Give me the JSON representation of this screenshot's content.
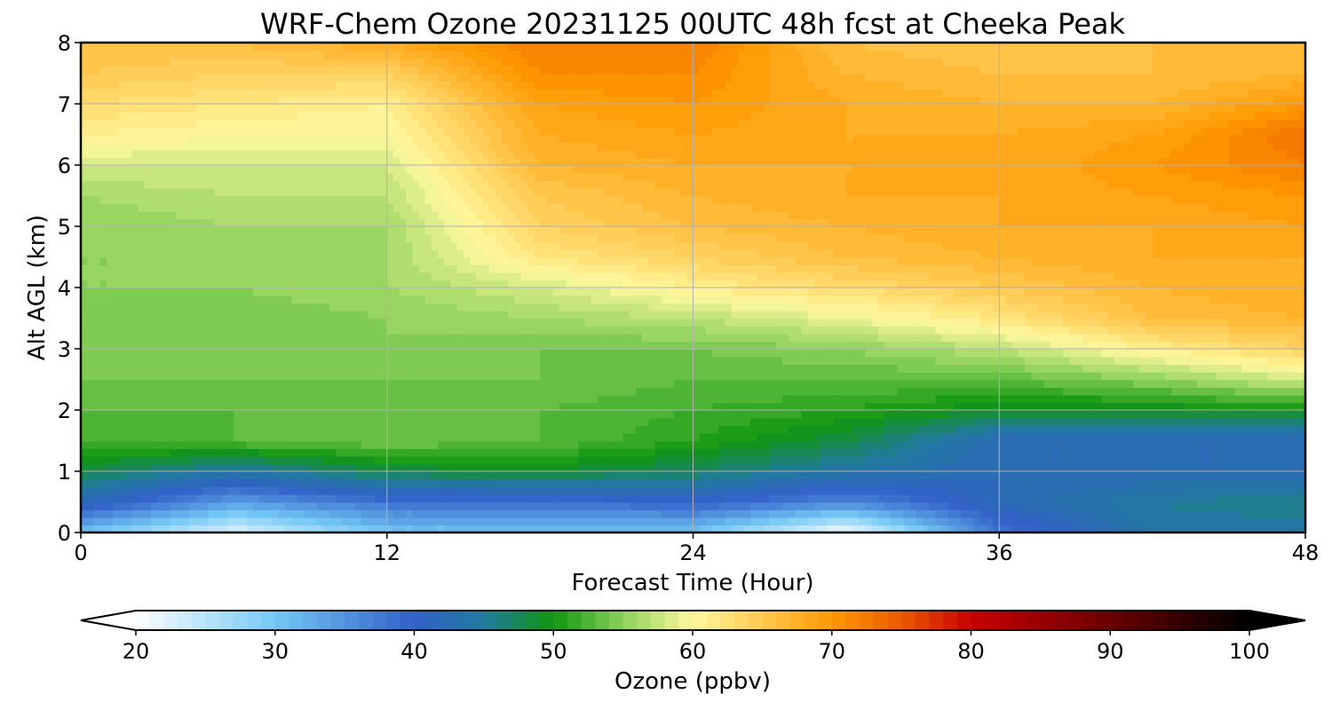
{
  "chart_data": {
    "type": "heatmap",
    "title": "WRF-Chem Ozone  20231125 00UTC 48h fcst at Cheeka Peak",
    "xlabel": "Forecast Time (Hour)",
    "ylabel": "Alt AGL (km)",
    "xlim": [
      0,
      48
    ],
    "ylim": [
      0,
      8
    ],
    "x_ticks": [
      "0",
      "12",
      "24",
      "36",
      "48"
    ],
    "y_ticks": [
      "0",
      "1",
      "2",
      "3",
      "4",
      "5",
      "6",
      "7",
      "8"
    ],
    "grid": true,
    "x": [
      0,
      6,
      12,
      18,
      24,
      30,
      36,
      42,
      48
    ],
    "y": [
      0,
      0.5,
      1,
      1.5,
      2,
      2.5,
      3,
      3.5,
      4,
      4.5,
      5,
      5.5,
      6,
      6.5,
      7,
      7.5,
      8
    ],
    "z": [
      [
        30,
        22,
        30,
        30,
        30,
        20,
        38,
        44,
        44
      ],
      [
        42,
        34,
        38,
        38,
        40,
        36,
        42,
        45,
        46
      ],
      [
        48,
        44,
        48,
        49,
        47,
        44,
        42,
        42,
        42
      ],
      [
        52,
        53,
        54,
        53,
        51,
        48,
        42,
        42,
        42
      ],
      [
        53,
        53,
        53,
        53,
        52,
        51,
        49,
        49,
        50
      ],
      [
        54,
        54,
        54,
        54,
        53,
        53,
        53,
        55,
        58
      ],
      [
        55,
        54,
        55,
        54,
        54,
        55,
        57,
        61,
        64
      ],
      [
        55,
        54,
        55,
        56,
        57,
        59,
        62,
        66,
        67
      ],
      [
        55,
        55,
        56,
        58,
        61,
        63,
        65,
        67,
        68
      ],
      [
        55,
        55,
        56,
        62,
        64,
        66,
        67,
        68,
        68
      ],
      [
        55,
        56,
        56,
        64,
        66,
        67,
        68,
        68,
        69
      ],
      [
        56,
        57,
        57,
        65,
        67,
        68,
        68,
        69,
        70
      ],
      [
        58,
        58,
        58,
        67,
        68,
        68,
        68,
        70,
        72
      ],
      [
        61,
        60,
        60,
        68,
        69,
        68,
        68,
        69,
        73
      ],
      [
        63,
        62,
        61,
        69,
        70,
        68,
        67,
        67,
        70
      ],
      [
        65,
        64,
        64,
        71,
        71,
        67,
        66,
        66,
        67
      ],
      [
        66,
        66,
        68,
        72,
        72,
        66,
        65,
        66,
        66
      ]
    ],
    "colorbar": {
      "label": "Ozone  (ppbv)",
      "range": [
        20,
        100
      ],
      "step": 1,
      "ticks": [
        "20",
        "30",
        "40",
        "50",
        "60",
        "70",
        "80",
        "90",
        "100"
      ],
      "extend": "both",
      "colors": [
        {
          "v": 20,
          "c": "#ffffff"
        },
        {
          "v": 30,
          "c": "#73c8f5"
        },
        {
          "v": 40,
          "c": "#3260c8"
        },
        {
          "v": 45,
          "c": "#217a9e"
        },
        {
          "v": 50,
          "c": "#0f960f"
        },
        {
          "v": 55,
          "c": "#8cd25a"
        },
        {
          "v": 60,
          "c": "#fff9a0"
        },
        {
          "v": 70,
          "c": "#ff9900"
        },
        {
          "v": 75,
          "c": "#ea5a00"
        },
        {
          "v": 80,
          "c": "#c80000"
        },
        {
          "v": 90,
          "c": "#6a0000"
        },
        {
          "v": 100,
          "c": "#000000"
        }
      ]
    }
  }
}
